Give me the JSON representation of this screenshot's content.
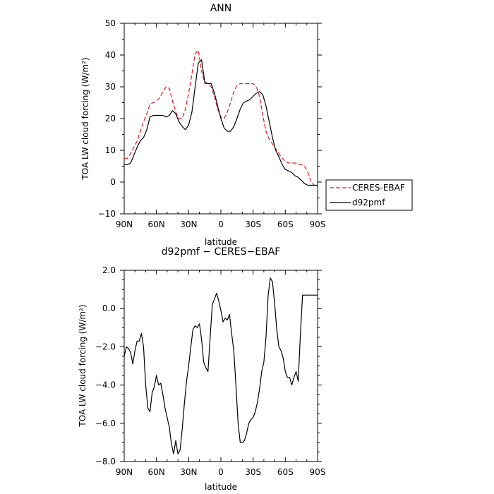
{
  "chart_data": [
    {
      "type": "line",
      "title": "ANN",
      "xlabel": "latitude",
      "ylabel": "TOA LW cloud forcing (W/m²)",
      "xlim": [
        90,
        -90
      ],
      "ylim": [
        -10,
        50
      ],
      "xticks": [
        90,
        60,
        30,
        0,
        -30,
        -60,
        -90
      ],
      "xtick_labels": [
        "90N",
        "60N",
        "30N",
        "0",
        "30S",
        "60S",
        "90S"
      ],
      "yticks": [
        -10,
        0,
        10,
        20,
        30,
        40,
        50
      ],
      "ytick_labels": [
        "−10",
        "0",
        "10",
        "20",
        "30",
        "40",
        "50"
      ],
      "legend": "outside-right",
      "series": [
        {
          "name": "CERES-EBAF",
          "color": "#e31a1c",
          "style": "dashed",
          "x": [
            90,
            87,
            84,
            81,
            78,
            75,
            72,
            69,
            66,
            63,
            60,
            57,
            54,
            51,
            48,
            45,
            42,
            39,
            36,
            33,
            30,
            27,
            24,
            21,
            18,
            15,
            12,
            9,
            6,
            3,
            0,
            -3,
            -6,
            -9,
            -12,
            -15,
            -18,
            -21,
            -24,
            -27,
            -30,
            -33,
            -36,
            -39,
            -42,
            -45,
            -48,
            -51,
            -54,
            -57,
            -60,
            -63,
            -66,
            -69,
            -72,
            -75,
            -78,
            -81,
            -84,
            -87,
            -90
          ],
          "y": [
            7.5,
            7.5,
            9,
            11,
            13,
            16,
            19,
            21.5,
            24.5,
            25,
            25.5,
            26.5,
            28.5,
            30,
            29.5,
            25.5,
            22,
            20,
            20,
            23,
            28,
            34,
            40.5,
            41.5,
            35,
            31,
            31,
            30,
            27,
            23,
            20.5,
            20,
            22,
            25,
            28.5,
            30.5,
            31,
            31,
            31,
            31,
            31,
            30,
            27,
            21,
            16,
            13.5,
            12,
            10.5,
            9,
            7.5,
            6.5,
            6,
            6,
            6,
            5.5,
            5.5,
            5,
            3,
            0,
            -1,
            -1
          ]
        },
        {
          "name": "d92pmf",
          "color": "#000000",
          "style": "solid",
          "x": [
            90,
            87,
            84,
            81,
            78,
            75,
            72,
            69,
            66,
            63,
            60,
            57,
            54,
            51,
            48,
            45,
            42,
            39,
            36,
            33,
            30,
            27,
            24,
            21,
            18,
            15,
            12,
            9,
            6,
            3,
            0,
            -3,
            -6,
            -9,
            -12,
            -15,
            -18,
            -21,
            -24,
            -27,
            -30,
            -33,
            -36,
            -39,
            -42,
            -45,
            -48,
            -51,
            -54,
            -57,
            -60,
            -63,
            -66,
            -69,
            -72,
            -75,
            -78,
            -81,
            -84,
            -87,
            -90
          ],
          "y": [
            5.5,
            5.5,
            6,
            8.5,
            11,
            13,
            14,
            16.5,
            20.5,
            21,
            21,
            21,
            21,
            20.5,
            21,
            22.5,
            21.5,
            19,
            17.5,
            16.5,
            18,
            22,
            30,
            37.5,
            38.5,
            31.5,
            31,
            31,
            28,
            24,
            20,
            17,
            16,
            16,
            17.5,
            20,
            23,
            25,
            25.5,
            26,
            27,
            28,
            28.5,
            27.5,
            24,
            19,
            14,
            10,
            8,
            5.5,
            4,
            3.5,
            3,
            2,
            1.5,
            0.5,
            -0.5,
            -1,
            -1,
            -1,
            -1
          ]
        }
      ]
    },
    {
      "type": "line",
      "title": "d92pmf − CERES−EBAF",
      "xlabel": "latitude",
      "ylabel": "TOA LW cloud forcing (W/m²)",
      "xlim": [
        90,
        -90
      ],
      "ylim": [
        -8,
        2
      ],
      "xticks": [
        90,
        60,
        30,
        0,
        -30,
        -60,
        -90
      ],
      "xtick_labels": [
        "90N",
        "60N",
        "30N",
        "0",
        "30S",
        "60S",
        "90S"
      ],
      "yticks": [
        -8,
        -6,
        -4,
        -2,
        0,
        2
      ],
      "ytick_labels": [
        "−8.0",
        "−6.0",
        "−4.0",
        "−2.0",
        "0.0",
        "2.0"
      ],
      "series": [
        {
          "color": "#000000",
          "style": "solid",
          "x": [
            90,
            88,
            86,
            84,
            82,
            80,
            78,
            76,
            74,
            72,
            70,
            68,
            66,
            64,
            62,
            60,
            58,
            56,
            54,
            52,
            50,
            48,
            46,
            44,
            42,
            40,
            38,
            36,
            34,
            32,
            30,
            28,
            26,
            24,
            22,
            20,
            18,
            16,
            14,
            12,
            10,
            8,
            6,
            4,
            2,
            0,
            -2,
            -4,
            -6,
            -8,
            -10,
            -12,
            -14,
            -16,
            -18,
            -20,
            -22,
            -24,
            -26,
            -28,
            -30,
            -32,
            -34,
            -36,
            -38,
            -40,
            -42,
            -44,
            -46,
            -48,
            -50,
            -52,
            -54,
            -56,
            -58,
            -60,
            -62,
            -64,
            -66,
            -68,
            -70,
            -72,
            -74,
            -76,
            -78,
            -80,
            -82,
            -84,
            -86,
            -88,
            -90
          ],
          "y": [
            -2.5,
            -2,
            -2.1,
            -2.3,
            -2.9,
            -2.2,
            -1.7,
            -1.7,
            -1.3,
            -2,
            -4,
            -5.2,
            -5.4,
            -4.4,
            -4.1,
            -3.5,
            -4,
            -3.9,
            -4.5,
            -5.2,
            -5.7,
            -6.2,
            -7.1,
            -7.6,
            -6.9,
            -7.6,
            -7.4,
            -6.3,
            -5,
            -3.8,
            -3,
            -2,
            -1.1,
            -0.9,
            -1,
            -0.8,
            -1.6,
            -2.8,
            -3.1,
            -3.3,
            -1.5,
            0.2,
            0.5,
            0.8,
            0.4,
            -0.1,
            -0.7,
            -0.5,
            -0.6,
            -0.3,
            -1.3,
            -2.2,
            -4,
            -6,
            -7,
            -7,
            -6.9,
            -6.5,
            -6,
            -5.8,
            -5.7,
            -5.4,
            -4.9,
            -4.2,
            -3.3,
            -2.8,
            -1.5,
            0.7,
            1.6,
            1.4,
            0.3,
            -1.1,
            -2,
            -2.2,
            -2.6,
            -3.3,
            -3.6,
            -3.6,
            -4,
            -3.6,
            -3.3,
            -3.8,
            -1.4,
            0.7,
            0.7,
            0.7,
            0.7,
            0.7,
            0.7,
            0.7,
            0.7
          ]
        }
      ]
    }
  ]
}
